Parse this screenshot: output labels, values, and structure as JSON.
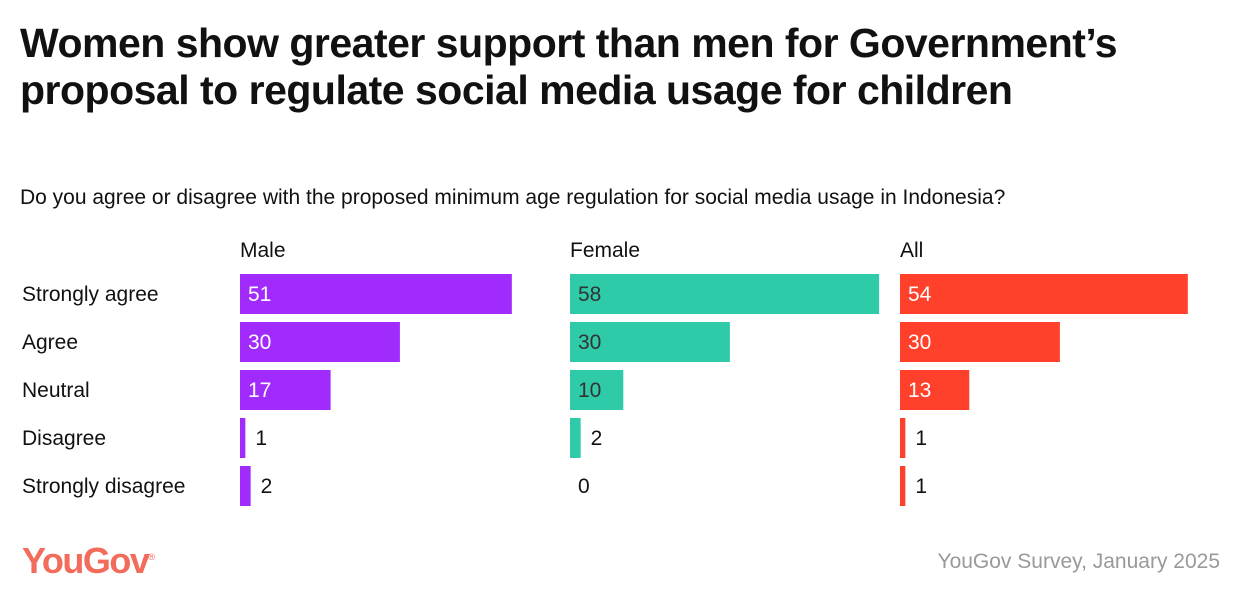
{
  "title": "Women show greater support than men for Government’s proposal to regulate social media usage for children",
  "subtitle": "Do you agree or disagree with the proposed minimum age regulation for social media usage in Indonesia?",
  "logo": "YouGov",
  "source": "YouGov Survey, January 2025",
  "chart_data": {
    "type": "bar",
    "orientation": "horizontal",
    "categories": [
      "Strongly agree",
      "Agree",
      "Neutral",
      "Disagree",
      "Strongly disagree"
    ],
    "series": [
      {
        "name": "Male",
        "color": "#a12bfc",
        "label_color": "#ffffff",
        "values": [
          51,
          30,
          17,
          1,
          2
        ]
      },
      {
        "name": "Female",
        "color": "#2fcaa8",
        "label_color": "#333333",
        "values": [
          58,
          30,
          10,
          2,
          0
        ]
      },
      {
        "name": "All",
        "color": "#ff412c",
        "label_color": "#ffffff",
        "values": [
          54,
          30,
          13,
          1,
          1
        ]
      }
    ],
    "xlim": [
      0,
      100
    ],
    "grid": false,
    "legend": "none"
  }
}
